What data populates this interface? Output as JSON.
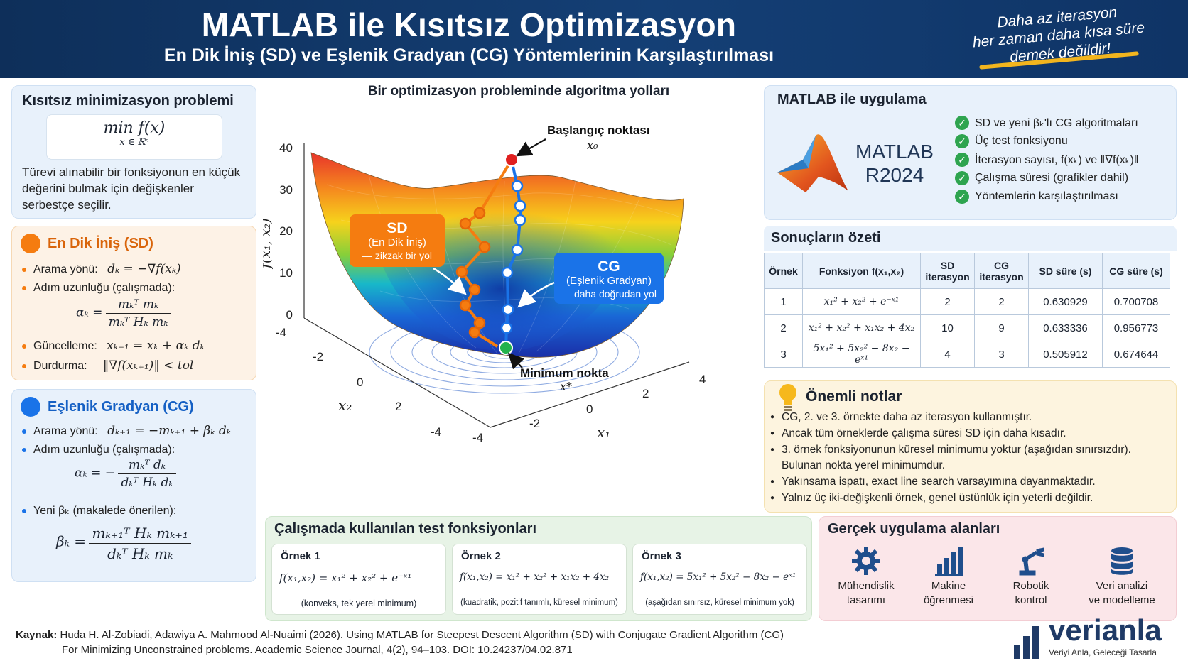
{
  "header": {
    "title": "MATLAB ile Kısıtsız Optimizasyon",
    "subtitle": "En Dik İniş (SD) ve Eşlenik Gradyan (CG) Yöntemlerinin Karşılaştırılması",
    "quote": [
      "Daha az iterasyon",
      "her zaman daha kısa süre",
      "demek değildir!"
    ]
  },
  "problem": {
    "title": "Kısıtsız minimizasyon problemi",
    "formula_top": "min  f(x)",
    "formula_bottom": "x ∈ ℝⁿ",
    "description": "Türevi alınabilir bir fonksiyonun en küçük değerini bulmak için değişkenler serbestçe seçilir."
  },
  "sd": {
    "title": "En Dik İniş (SD)",
    "color": "#f57c10",
    "direction_label": "Arama yönü:",
    "direction_formula": "dₖ = −∇f(xₖ)",
    "step_label": "Adım uzunluğu (çalışmada):",
    "step_lhs": "αₖ =",
    "step_num": "mₖᵀ mₖ",
    "step_den": "mₖᵀ Hₖ mₖ",
    "update_label": "Güncelleme:",
    "update_formula": "xₖ₊₁ = xₖ + αₖ dₖ",
    "stop_label": "Durdurma:",
    "stop_formula": "‖∇f(xₖ₊₁)‖ < tol"
  },
  "cg": {
    "title": "Eşlenik Gradyan (CG)",
    "color": "#1a73e8",
    "direction_label": "Arama yönü:",
    "direction_formula": "dₖ₊₁ = −mₖ₊₁ + βₖ dₖ",
    "step_label": "Adım uzunluğu (çalışmada):",
    "step_lhs": "αₖ = −",
    "step_num": "mₖᵀ dₖ",
    "step_den": "dₖᵀ Hₖ dₖ",
    "beta_label": "Yeni βₖ (makalede önerilen):",
    "beta_lhs": "βₖ =",
    "beta_num": "mₖ₊₁ᵀ Hₖ mₖ₊₁",
    "beta_den": "dₖᵀ Hₖ mₖ"
  },
  "chart": {
    "title": "Bir optimizasyon probleminde algoritma yolları",
    "zlabel": "f(x₁, x₂)",
    "xlabel": "x₁",
    "ylabel": "x₂",
    "z_ticks": [
      "40",
      "30",
      "20",
      "10",
      "0"
    ],
    "x1_ticks": [
      "-4",
      "-2",
      "0",
      "2",
      "4"
    ],
    "x2_ticks": [
      "-4",
      "-2",
      "0",
      "2"
    ],
    "start_label": "Başlangıç noktası",
    "start_sym": "x₀",
    "min_label": "Minimum nokta",
    "min_sym": "x*",
    "sd_box": [
      "SD",
      "(En Dik İniş)",
      "— zikzak bir yol"
    ],
    "cg_box": [
      "CG",
      "(Eşlenik Gradyan)",
      "— daha doğrudan yol"
    ]
  },
  "chart_data": {
    "type": "surface-3d",
    "title": "Bir optimizasyon probleminde algoritma yolları",
    "zlim": [
      0,
      40
    ],
    "x1lim": [
      -4,
      4
    ],
    "x2lim": [
      -4,
      4
    ],
    "series": [
      {
        "name": "SD",
        "color": "#f57c10",
        "path": "zigzag"
      },
      {
        "name": "CG",
        "color": "#1a73e8",
        "path": "direct"
      }
    ]
  },
  "matlab": {
    "title": "MATLAB ile uygulama",
    "product": "MATLAB",
    "version": "R2024",
    "items": [
      "SD ve yeni βₖ'lı CG algoritmaları",
      "Üç test fonksiyonu",
      "İterasyon sayısı, f(xₖ) ve ‖∇f(xₖ)‖",
      "Çalışma süresi (grafikler dahil)",
      "Yöntemlerin karşılaştırılması"
    ]
  },
  "results": {
    "title": "Sonuçların özeti",
    "headers": [
      "Örnek",
      "Fonksiyon f(x₁,x₂)",
      "SD iterasyon",
      "CG iterasyon",
      "SD süre (s)",
      "CG süre (s)"
    ],
    "rows": [
      [
        "1",
        "x₁² + x₂² + e⁻ˣ¹",
        "2",
        "2",
        "0.630929",
        "0.700708"
      ],
      [
        "2",
        "x₁² + x₂² + x₁x₂ + 4x₂",
        "10",
        "9",
        "0.633336",
        "0.956773"
      ],
      [
        "3",
        "5x₁² + 5x₂² − 8x₂ − eˣ¹",
        "4",
        "3",
        "0.505912",
        "0.674644"
      ]
    ]
  },
  "notes": {
    "title": "Önemli notlar",
    "items": [
      "CG, 2. ve 3. örnekte daha az iterasyon kullanmıştır.",
      "Ancak tüm örneklerde çalışma süresi SD için daha kısadır.",
      "3. örnek fonksiyonunun küresel minimumu yoktur (aşağıdan sınırsızdır). Bulunan nokta yerel minimumdur.",
      "Yakınsama ispatı, exact line search varsayımına dayanmaktadır.",
      "Yalnız üç iki-değişkenli örnek, genel üstünlük için yeterli değildir."
    ]
  },
  "tests": {
    "title": "Çalışmada kullanılan test fonksiyonları",
    "cards": [
      {
        "title": "Örnek 1",
        "formula": "f(x₁,x₂) = x₁² + x₂² + e⁻ˣ¹",
        "note": "(konveks, tek yerel minimum)"
      },
      {
        "title": "Örnek 2",
        "formula": "f(x₁,x₂) = x₁² + x₂² + x₁x₂ + 4x₂",
        "note": "(kuadratik, pozitif tanımlı, küresel minimum)"
      },
      {
        "title": "Örnek 3",
        "formula": "f(x₁,x₂) = 5x₁² + 5x₂² − 8x₂ − eˣ¹",
        "note": "(aşağıdan sınırsız, küresel minimum yok)"
      }
    ]
  },
  "apps": {
    "title": "Gerçek uygulama alanları",
    "items": [
      {
        "icon": "gear-icon",
        "line1": "Mühendislik",
        "line2": "tasarımı"
      },
      {
        "icon": "bar-chart-icon",
        "line1": "Makine",
        "line2": "öğrenmesi"
      },
      {
        "icon": "robot-arm-icon",
        "line1": "Robotik",
        "line2": "kontrol"
      },
      {
        "icon": "database-icon",
        "line1": "Veri analizi",
        "line2": "ve modelleme"
      }
    ]
  },
  "footer": {
    "source_label": "Kaynak:",
    "source_line1": "Huda H. Al-Zobiadi, Adawiya A. Mahmood Al-Nuaimi (2026). Using MATLAB for Steepest Descent Algorithm (SD) with Conjugate Gradient Algorithm (CG)",
    "source_line2": "For Minimizing Unconstrained problems. Academic Science Journal, 4(2), 94–103. DOI: 10.24237/04.02.871",
    "brand": "verianla",
    "tagline": "Veriyi Anla, Geleceği Tasarla"
  }
}
